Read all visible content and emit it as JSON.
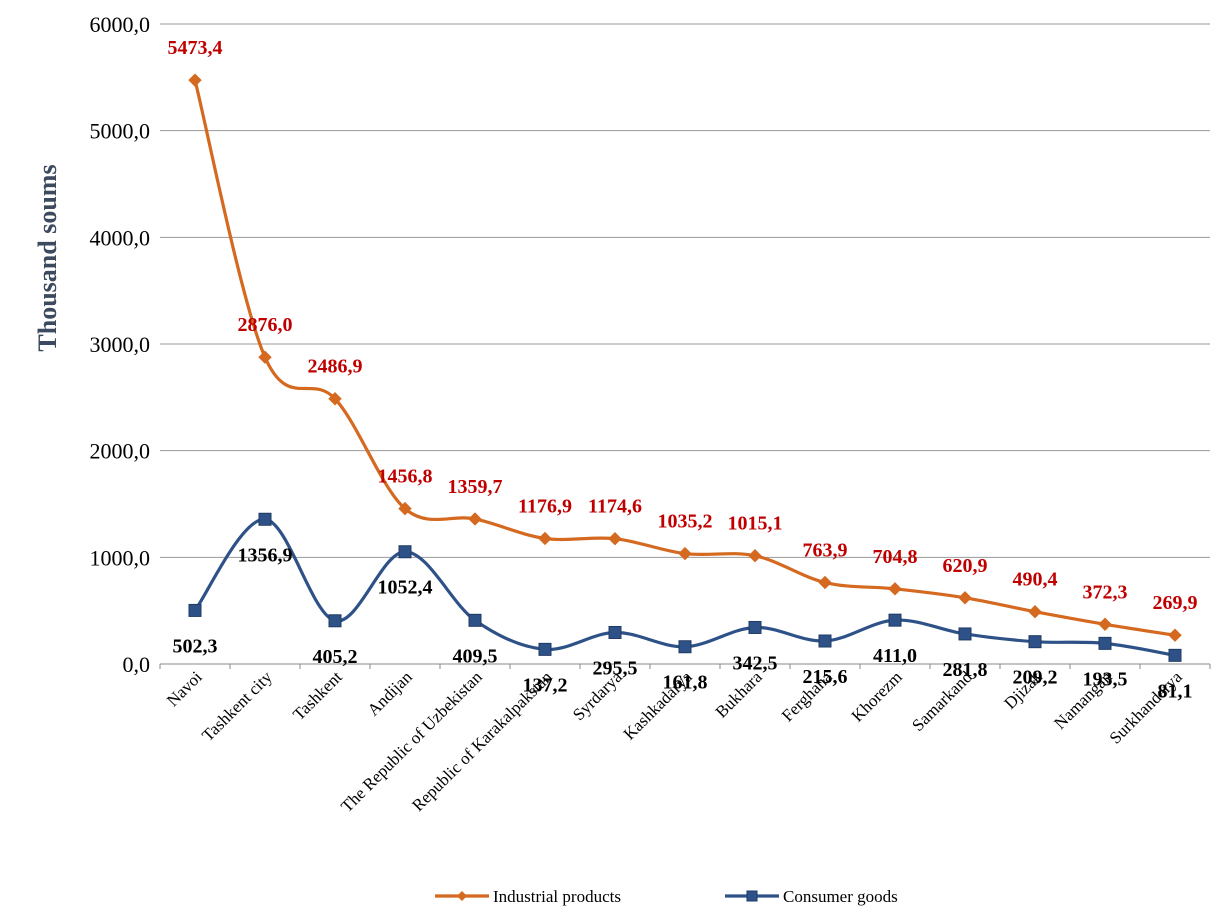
{
  "chart_data": {
    "type": "line",
    "title": "",
    "xlabel": "",
    "ylabel": "Thousand soums",
    "ylim": [
      0,
      6000
    ],
    "yticks": [
      "0,0",
      "1000,0",
      "2000,0",
      "3000,0",
      "4000,0",
      "5000,0",
      "6000,0"
    ],
    "grid": "horizontal",
    "legend": "bottom",
    "smooth": true,
    "categories": [
      "Navoi",
      "Tashkent city",
      "Tashkent",
      "Andijan",
      "The Republic of Uzbekistan",
      "Republic of Karakalpakstan",
      "Syrdarya",
      "Kashkadarya",
      "Bukhara",
      "Ferghana",
      "Khorezm",
      "Samarkand",
      "Djizak",
      "Namangan",
      "Surkhandarya"
    ],
    "series": [
      {
        "name": "Industrial products",
        "color": "#d4691f",
        "label_color": "#c00000",
        "marker": "diamond",
        "values": [
          5473.4,
          2876.0,
          2486.9,
          1456.8,
          1359.7,
          1176.9,
          1174.6,
          1035.2,
          1015.1,
          763.9,
          704.8,
          620.9,
          490.4,
          372.3,
          269.9
        ],
        "labels": [
          "5473,4",
          "2876,0",
          "2486,9",
          "1456,8",
          "1359,7",
          "1176,9",
          "1174,6",
          "1035,2",
          "1015,1",
          "763,9",
          "704,8",
          "620,9",
          "490,4",
          "372,3",
          "269,9"
        ]
      },
      {
        "name": "Consumer goods",
        "color": "#2e5288",
        "label_color": "#000000",
        "marker": "square",
        "values": [
          502.3,
          1356.9,
          405.2,
          1052.4,
          409.5,
          137.2,
          295.5,
          161.8,
          342.5,
          215.6,
          411.0,
          281.8,
          209.2,
          193.5,
          81.1
        ],
        "labels": [
          "502,3",
          "1356,9",
          "405,2",
          "1052,4",
          "409,5",
          "137,2",
          "295,5",
          "161,8",
          "342,5",
          "215,6",
          "411,0",
          "281,8",
          "209,2",
          "193,5",
          "81,1"
        ]
      }
    ]
  }
}
